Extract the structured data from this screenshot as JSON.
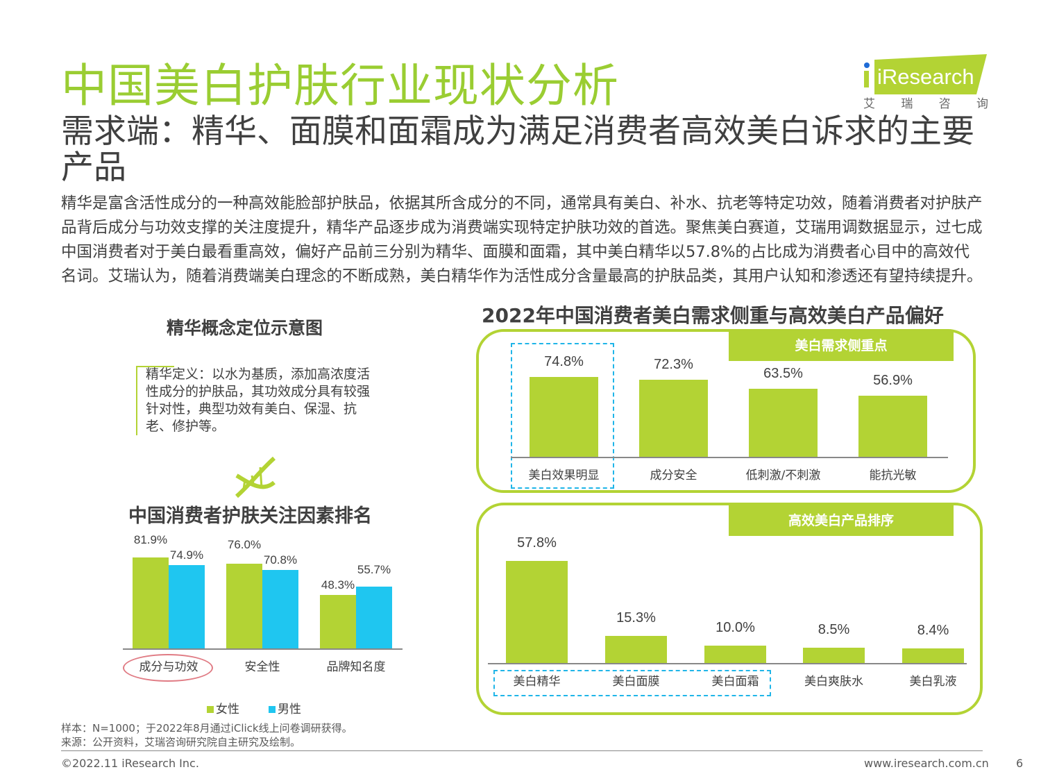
{
  "header": {
    "title": "中国美白护肤行业现状分析",
    "subtitle": "需求端：精华、面膜和面霜成为满足消费者高效美白诉求的主要产品",
    "logo_text": "iResearch",
    "logo_cn": [
      "艾",
      "瑞",
      "咨",
      "询"
    ]
  },
  "body_text": "精华是富含活性成分的一种高效能脸部护肤品，依据其所含成分的不同，通常具有美白、补水、抗老等特定功效，随着消费者对护肤产品背后成分与功效支撑的关注度提升，精华产品逐步成为消费端实现特定护肤功效的首选。聚焦美白赛道，艾瑞用调数据显示，过七成中国消费者对于美白最看重高效，偏好产品前三分别为精华、面膜和面霜，其中美白精华以57.8%的占比成为消费者心目中的高效代名词。艾瑞认为，随着消费端美白理念的不断成熟，美白精华作为活性成分含量最高的护肤品类，其用户认知和渗透还有望持续提升。",
  "concept": {
    "title": "精华概念定位示意图",
    "definition": "精华定义：以水为基质，添加高浓度活性成分的护肤品，其功效成分具有较强针对性，典型功效有美白、保湿、抗老、修护等。"
  },
  "colors": {
    "green": "#b3d334",
    "blue": "#1fc6f0",
    "title_green": "#9acd32"
  },
  "chart_data": [
    {
      "type": "bar",
      "title": "中国消费者护肤关注因素排名",
      "categories": [
        "成分与功效",
        "安全性",
        "品牌知名度"
      ],
      "series": [
        {
          "name": "女性",
          "values": [
            81.9,
            76.0,
            48.3
          ],
          "labels": [
            "81.9%",
            "76.0%",
            "48.3%"
          ]
        },
        {
          "name": "男性",
          "values": [
            74.9,
            70.8,
            55.7
          ],
          "labels": [
            "74.9%",
            "70.8%",
            "55.7%"
          ]
        }
      ],
      "highlight": "成分与功效",
      "legend": "bottom",
      "ylim": [
        0,
        100
      ]
    },
    {
      "type": "bar",
      "title": "2022年中国消费者美白需求侧重与高效美白产品偏好",
      "panel_title": "美白需求侧重点",
      "categories": [
        "美白效果明显",
        "成分安全",
        "低刺激/不刺激",
        "能抗光敏"
      ],
      "values": [
        74.8,
        72.3,
        63.5,
        56.9
      ],
      "labels": [
        "74.8%",
        "72.3%",
        "63.5%",
        "56.9%"
      ],
      "ylim": [
        0,
        100
      ]
    },
    {
      "type": "bar",
      "panel_title": "高效美白产品排序",
      "categories": [
        "美白精华",
        "美白面膜",
        "美白面霜",
        "美白爽肤水",
        "美白乳液"
      ],
      "values": [
        57.8,
        15.3,
        10.0,
        8.5,
        8.4
      ],
      "labels": [
        "57.8%",
        "15.3%",
        "10.0%",
        "8.5%",
        "8.4%"
      ],
      "ylim": [
        0,
        60
      ]
    }
  ],
  "footer": {
    "sample": "样本：N=1000；于2022年8月通过iClick线上问卷调研获得。",
    "source": "来源：公开资料，艾瑞咨询研究院自主研究及绘制。",
    "copyright": "©2022.11 iResearch Inc.",
    "url": "www.iresearch.com.cn",
    "page": "6"
  }
}
